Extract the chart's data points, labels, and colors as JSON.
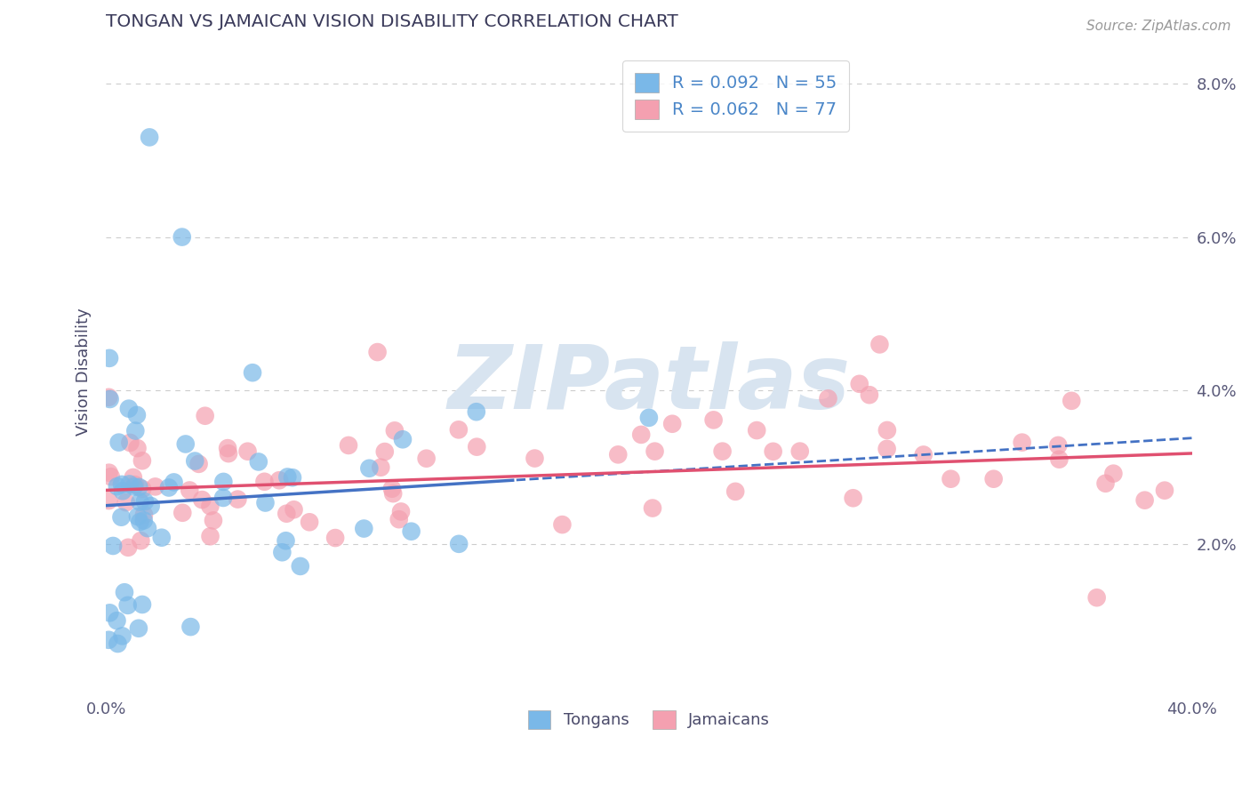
{
  "title": "TONGAN VS JAMAICAN VISION DISABILITY CORRELATION CHART",
  "source_text": "Source: ZipAtlas.com",
  "ylabel": "Vision Disability",
  "xlim": [
    0.0,
    0.4
  ],
  "ylim": [
    0.0,
    0.085
  ],
  "xtick_positions": [
    0.0,
    0.05,
    0.1,
    0.15,
    0.2,
    0.25,
    0.3,
    0.35,
    0.4
  ],
  "xtick_labels": [
    "0.0%",
    "",
    "",
    "",
    "",
    "",
    "",
    "",
    "40.0%"
  ],
  "ytick_positions": [
    0.0,
    0.02,
    0.04,
    0.06,
    0.08
  ],
  "ytick_labels": [
    "",
    "2.0%",
    "4.0%",
    "6.0%",
    "8.0%"
  ],
  "tongan_color": "#7ab8e8",
  "jamaican_color": "#f4a0b0",
  "tongan_line_color": "#4472c4",
  "jamaican_line_color": "#e05070",
  "legend_label_1": "R = 0.092   N = 55",
  "legend_label_2": "R = 0.062   N = 77",
  "legend_bottom_1": "Tongans",
  "legend_bottom_2": "Jamaicans",
  "background_color": "#ffffff",
  "grid_color": "#cccccc",
  "title_color": "#3a3a5a",
  "axis_label_color": "#4a4a6a",
  "tick_label_color": "#5a5a7a",
  "legend_text_color": "#4a86c8",
  "watermark": "ZIPatlas",
  "watermark_color": "#d8e4f0"
}
